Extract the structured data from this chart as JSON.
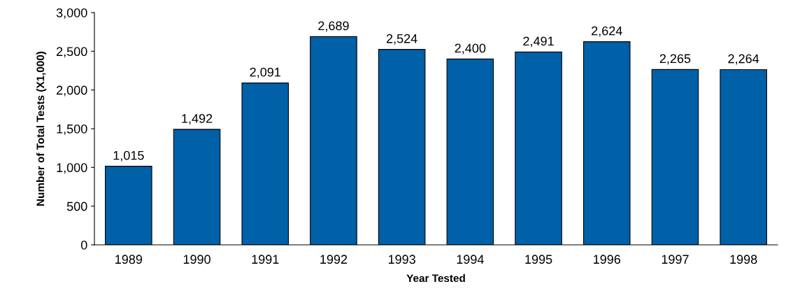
{
  "chart_data": {
    "type": "bar",
    "xlabel": "Year Tested",
    "ylabel": "Number of Total Tests (X1,000)",
    "categories": [
      "1989",
      "1990",
      "1991",
      "1992",
      "1993",
      "1994",
      "1995",
      "1996",
      "1997",
      "1998"
    ],
    "values": [
      1015,
      1492,
      2091,
      2689,
      2524,
      2400,
      2491,
      2624,
      2265,
      2264
    ],
    "value_labels": [
      "1,015",
      "1,492",
      "2,091",
      "2,689",
      "2,524",
      "2,400",
      "2,491",
      "2,624",
      "2,265",
      "2,264"
    ],
    "color": "#0060a8",
    "ylim": [
      0,
      3000
    ],
    "yticks": [
      0,
      500,
      {
        "value": 1000,
        "label": "1,000"
      },
      {
        "value": 1500,
        "label": "1,500"
      },
      {
        "value": 2000,
        "label": "2,000"
      },
      {
        "value": 2500,
        "label": "2,500"
      },
      {
        "value": 3000,
        "label": "3,000"
      }
    ],
    "grid": false,
    "legend": false
  }
}
